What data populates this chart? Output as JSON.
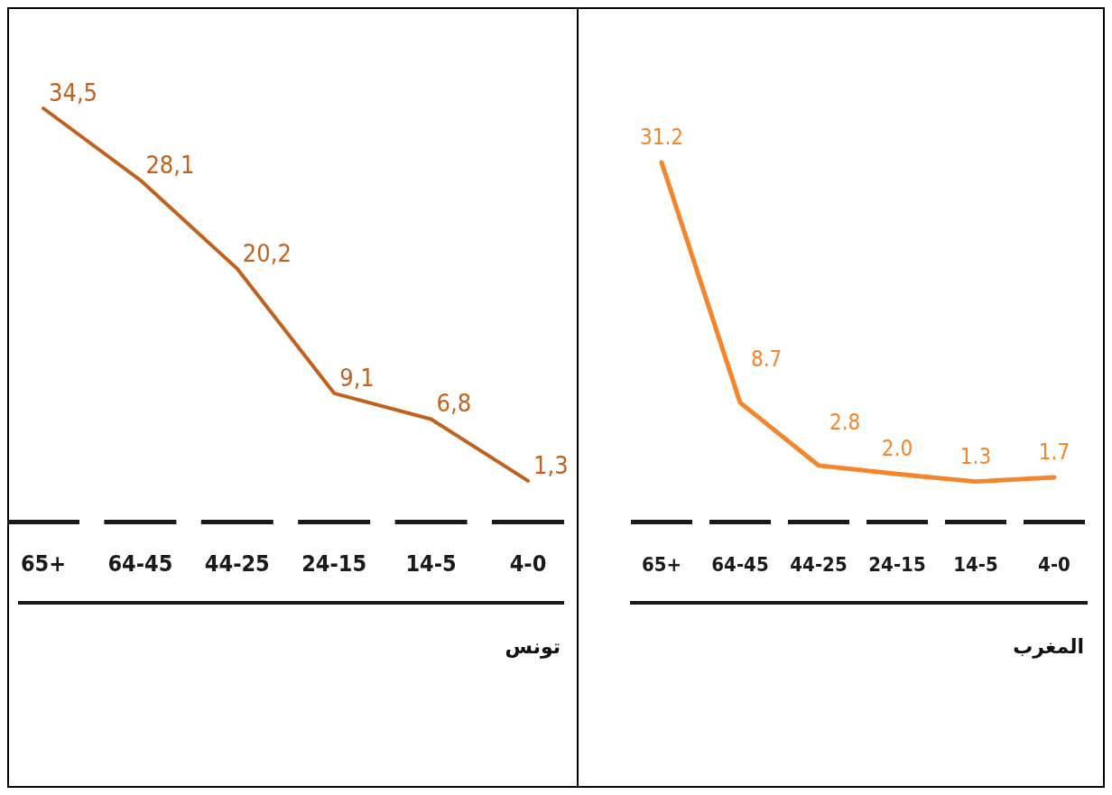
{
  "chart_data": [
    {
      "type": "line",
      "xlabel": "تونس",
      "categories": [
        "65+",
        "64-45",
        "44-25",
        "24-15",
        "14-5",
        "4-0"
      ],
      "values": [
        34.5,
        28.1,
        20.2,
        9.1,
        6.8,
        1.3
      ],
      "value_labels": [
        "34,5",
        "28,1",
        "20,2",
        "9,1",
        "6,8",
        "1,3"
      ],
      "color": "#c0621e"
    },
    {
      "type": "line",
      "xlabel": "المغرب",
      "categories": [
        "65+",
        "64-45",
        "44-25",
        "24-15",
        "14-5",
        "4-0"
      ],
      "values": [
        31.2,
        8.7,
        2.8,
        2.0,
        1.3,
        1.7
      ],
      "value_labels": [
        "31.2",
        "8.7",
        "2.8",
        "2.0",
        "1.3",
        "1.7"
      ],
      "color": "#f5842a"
    }
  ]
}
